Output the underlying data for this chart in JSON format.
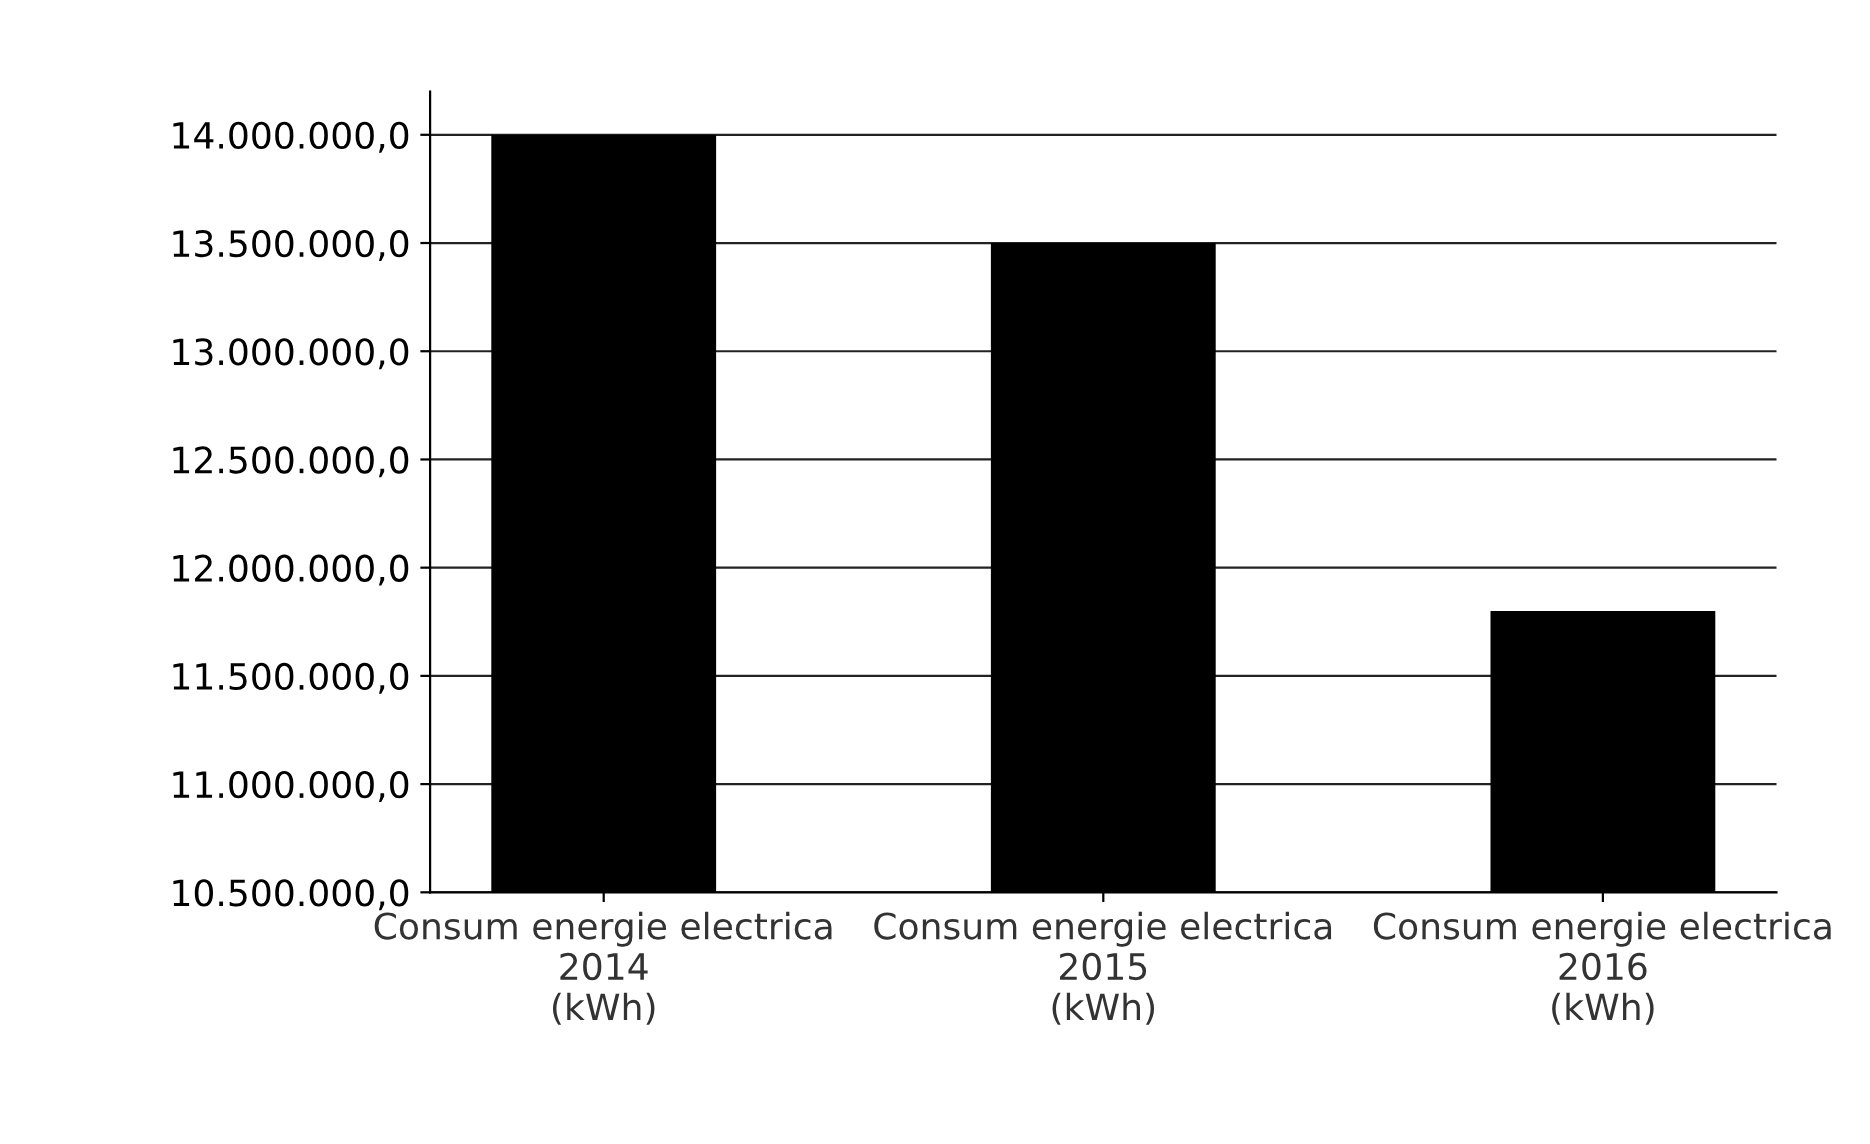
{
  "chart_data": {
    "type": "bar",
    "categories": [
      "Consum energie electrica 2014 (kWh)",
      "Consum energie electrica 2015 (kWh)",
      "Consum energie electrica 2016 (kWh)"
    ],
    "values": [
      14000000,
      13500000,
      11800000
    ],
    "color": "#000000",
    "ylim": [
      10500000,
      14200000
    ],
    "yticks": [
      {
        "value": 10500000,
        "label": "10.500.000,0"
      },
      {
        "value": 11000000,
        "label": "11.000.000,0"
      },
      {
        "value": 11500000,
        "label": "11.500.000,0"
      },
      {
        "value": 12000000,
        "label": "12.000.000,0"
      },
      {
        "value": 12500000,
        "label": "12.500.000,0"
      },
      {
        "value": 13000000,
        "label": "13.000.000,0"
      },
      {
        "value": 13500000,
        "label": "13.500.000,0"
      },
      {
        "value": 14000000,
        "label": "14.000.000,0"
      }
    ],
    "grid": "y",
    "legend": false
  }
}
